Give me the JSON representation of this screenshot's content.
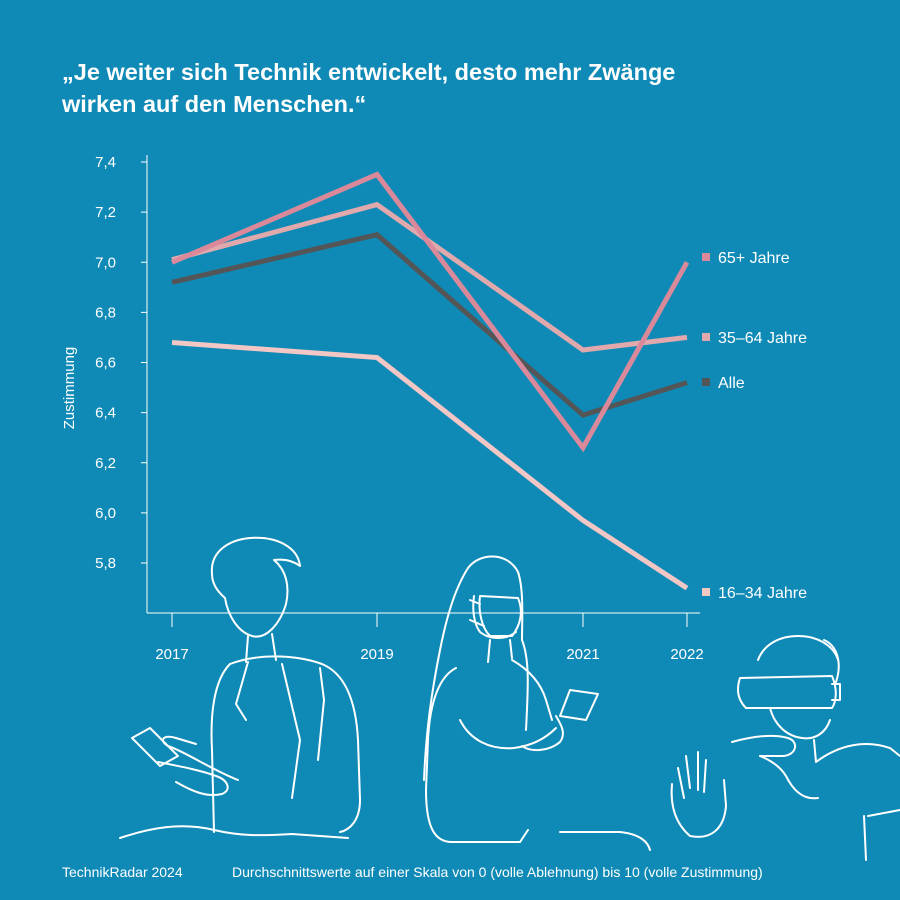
{
  "title": "„Je weiter sich Technik entwickelt, desto mehr Zwänge\nwirken auf den Menschen.“",
  "footer": {
    "source": "TechnikRadar 2024",
    "note": "Durchschnittswerte auf einer Skala von 0 (volle Ablehnung) bis 10 (volle Zustimmung)"
  },
  "chart_data": {
    "type": "line",
    "ylabel": "Zustimmung",
    "x": [
      "2017",
      "2019",
      "2021",
      "2022"
    ],
    "ylim": [
      5.6,
      7.4
    ],
    "yticks": [
      "7,4",
      "7,2",
      "7,0",
      "6,8",
      "6,6",
      "6,4",
      "6,2",
      "6,0",
      "5,8"
    ],
    "yticks_values": [
      7.4,
      7.2,
      7.0,
      6.8,
      6.6,
      6.4,
      6.2,
      6.0,
      5.8
    ],
    "grid": false,
    "legend": "right, at line ends",
    "series": [
      {
        "name": "65+ Jahre",
        "values": [
          7.0,
          7.35,
          6.26,
          7.0
        ],
        "color": "#d9899a"
      },
      {
        "name": "35–64 Jahre",
        "values": [
          7.01,
          7.23,
          6.65,
          6.7
        ],
        "color": "#e2a9ad"
      },
      {
        "name": "Alle",
        "values": [
          6.92,
          7.11,
          6.39,
          6.52
        ],
        "color": "#545556"
      },
      {
        "name": "16–34 Jahre",
        "values": [
          6.68,
          6.62,
          5.97,
          5.7
        ],
        "color": "#f2c7c5"
      }
    ]
  },
  "illustration": {
    "figures": [
      "person-with-phone",
      "woman-with-mask-and-phone",
      "person-with-vr-headset"
    ],
    "stroke_color": "#ffffff"
  }
}
